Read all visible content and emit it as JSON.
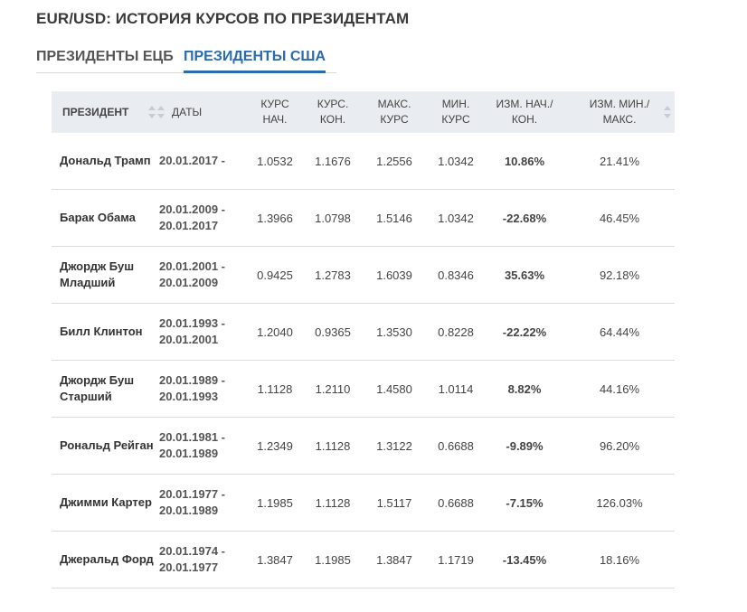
{
  "page": {
    "title": "EUR/USD: ИСТОРИЯ КУРСОВ ПО ПРЕЗИДЕНТАМ"
  },
  "tabs": [
    {
      "label": "ПРЕЗИДЕНТЫ ЕЦБ",
      "active": false
    },
    {
      "label": "ПРЕЗИДЕНТЫ США",
      "active": true
    }
  ],
  "table": {
    "headers": {
      "president": "ПРЕЗИДЕНТ",
      "dates": "ДАТЫ",
      "rate_start_1": "КУРС",
      "rate_start_2": "НАЧ.",
      "rate_end_1": "КУРС.",
      "rate_end_2": "КОН.",
      "max_1": "МАКС.",
      "max_2": "КУРС",
      "min_1": "МИН.",
      "min_2": "КУРС",
      "change_1": "ИЗМ. НАЧ./",
      "change_2": "КОН.",
      "range_1": "ИЗМ. МИН./",
      "range_2": "МАКС."
    },
    "rows": [
      {
        "president": "Дональд Трамп",
        "date_from": "20.01.2017 -",
        "date_to": "",
        "start": "1.0532",
        "end": "1.1676",
        "max": "1.2556",
        "min": "1.0342",
        "change": "10.86%",
        "change_sign": "pos",
        "range": "21.41%"
      },
      {
        "president": "Барак Обама",
        "date_from": "20.01.2009 -",
        "date_to": "20.01.2017",
        "start": "1.3966",
        "end": "1.0798",
        "max": "1.5146",
        "min": "1.0342",
        "change": "-22.68%",
        "change_sign": "neg",
        "range": "46.45%"
      },
      {
        "president": "Джордж Буш Младший",
        "date_from": "20.01.2001 -",
        "date_to": "20.01.2009",
        "start": "0.9425",
        "end": "1.2783",
        "max": "1.6039",
        "min": "0.8346",
        "change": "35.63%",
        "change_sign": "pos",
        "range": "92.18%"
      },
      {
        "president": "Билл Клинтон",
        "date_from": "20.01.1993 -",
        "date_to": "20.01.2001",
        "start": "1.2040",
        "end": "0.9365",
        "max": "1.3530",
        "min": "0.8228",
        "change": "-22.22%",
        "change_sign": "neg",
        "range": "64.44%"
      },
      {
        "president": "Джордж Буш Старший",
        "date_from": "20.01.1989 -",
        "date_to": "20.01.1993",
        "start": "1.1128",
        "end": "1.2110",
        "max": "1.4580",
        "min": "1.0114",
        "change": "8.82%",
        "change_sign": "pos",
        "range": "44.16%"
      },
      {
        "president": "Рональд Рейган",
        "date_from": "20.01.1981 -",
        "date_to": "20.01.1989",
        "start": "1.2349",
        "end": "1.1128",
        "max": "1.3122",
        "min": "0.6688",
        "change": "-9.89%",
        "change_sign": "neg",
        "range": "96.20%"
      },
      {
        "president": "Джимми Картер",
        "date_from": "20.01.1977 -",
        "date_to": "20.01.1989",
        "start": "1.1985",
        "end": "1.1128",
        "max": "1.5117",
        "min": "0.6688",
        "change": "-7.15%",
        "change_sign": "neg",
        "range": "126.03%"
      },
      {
        "president": "Джеральд Форд",
        "date_from": "20.01.1974 -",
        "date_to": "20.01.1977",
        "start": "1.3847",
        "end": "1.1985",
        "max": "1.3847",
        "min": "1.1719",
        "change": "-13.45%",
        "change_sign": "neg",
        "range": "18.16%"
      }
    ]
  },
  "colors": {
    "positive": "#2e9b2e",
    "negative": "#d8242c",
    "accent": "#2a6bb0",
    "header_bg": "#e9ecf0"
  },
  "icons": {
    "sort": "sort-arrows-icon"
  }
}
